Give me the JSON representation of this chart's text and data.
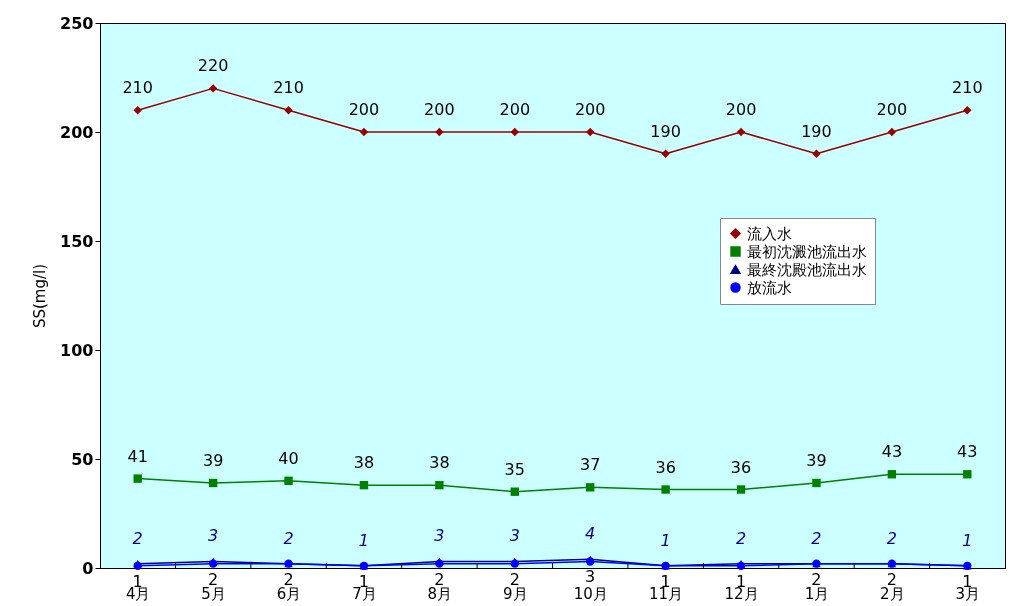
{
  "chart_data": {
    "type": "line",
    "ylabel": "SS(mg/l)",
    "categories": [
      "4月",
      "5月",
      "6月",
      "7月",
      "8月",
      "9月",
      "10月",
      "11月",
      "12月",
      "1月",
      "2月",
      "3月"
    ],
    "series": [
      {
        "name": "流入水",
        "color": "#990000",
        "marker": "diamond",
        "values": [
          210,
          220,
          210,
          200,
          200,
          200,
          200,
          190,
          200,
          190,
          200,
          210
        ]
      },
      {
        "name": "最初沈澱池流出水",
        "color": "#008000",
        "marker": "square",
        "values": [
          41,
          39,
          40,
          38,
          38,
          35,
          37,
          36,
          36,
          39,
          43,
          43
        ]
      },
      {
        "name": "最終沈殿池流出水",
        "color": "#000080",
        "marker": "triangle",
        "values": [
          2,
          3,
          2,
          1,
          3,
          3,
          4,
          1,
          2,
          2,
          2,
          1
        ]
      },
      {
        "name": "放流水",
        "color": "#0000ff",
        "marker": "circle",
        "values": [
          1,
          2,
          2,
          1,
          2,
          2,
          3,
          1,
          1,
          2,
          2,
          1
        ]
      }
    ],
    "ylim": [
      0,
      250
    ],
    "yticks": [
      0,
      50,
      100,
      150,
      200,
      250
    ],
    "grid": false,
    "legend": "right",
    "data_labels": true,
    "line_style": "solid"
  }
}
